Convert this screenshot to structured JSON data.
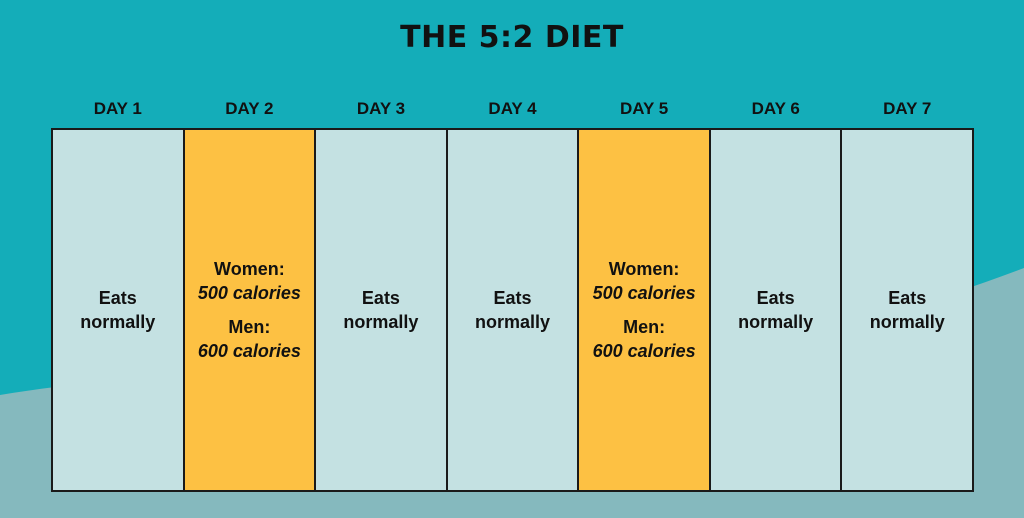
{
  "title": "THE 5:2 DIET",
  "colors": {
    "background": "#14adb9",
    "background_wave": "#85b9be",
    "normal_day": "#c4e1e2",
    "fasting_day": "#fdc143",
    "text": "#111111"
  },
  "days": [
    {
      "label": "DAY 1",
      "type": "normal",
      "text_line1": "Eats",
      "text_line2": "normally"
    },
    {
      "label": "DAY 2",
      "type": "fast",
      "women_label": "Women:",
      "women_value": "500 calories",
      "men_label": "Men:",
      "men_value": "600 calories"
    },
    {
      "label": "DAY 3",
      "type": "normal",
      "text_line1": "Eats",
      "text_line2": "normally"
    },
    {
      "label": "DAY 4",
      "type": "normal",
      "text_line1": "Eats",
      "text_line2": "normally"
    },
    {
      "label": "DAY 5",
      "type": "fast",
      "women_label": "Women:",
      "women_value": "500 calories",
      "men_label": "Men:",
      "men_value": "600 calories"
    },
    {
      "label": "DAY 6",
      "type": "normal",
      "text_line1": "Eats",
      "text_line2": "normally"
    },
    {
      "label": "DAY 7",
      "type": "normal",
      "text_line1": "Eats",
      "text_line2": "normally"
    }
  ]
}
